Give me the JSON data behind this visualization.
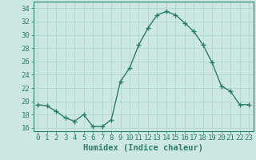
{
  "xlabel": "Humidex (Indice chaleur)",
  "x": [
    0,
    1,
    2,
    3,
    4,
    5,
    6,
    7,
    8,
    9,
    10,
    11,
    12,
    13,
    14,
    15,
    16,
    17,
    18,
    19,
    20,
    21,
    22,
    23
  ],
  "y": [
    19.5,
    19.3,
    18.5,
    17.5,
    17.0,
    18.0,
    16.2,
    16.2,
    17.2,
    23.0,
    25.0,
    28.5,
    31.0,
    33.0,
    33.5,
    33.0,
    31.8,
    30.5,
    28.5,
    25.8,
    22.3,
    21.5,
    19.5,
    19.5
  ],
  "line_color": "#2d7d6b",
  "marker": "+",
  "bg_color": "#cce8e0",
  "grid_color": "#aed4ca",
  "tick_color": "#2d7d6b",
  "label_color": "#2d7d6b",
  "ylim": [
    15.5,
    35
  ],
  "yticks": [
    16,
    18,
    20,
    22,
    24,
    26,
    28,
    30,
    32,
    34
  ],
  "xticks": [
    0,
    1,
    2,
    3,
    4,
    5,
    6,
    7,
    8,
    9,
    10,
    11,
    12,
    13,
    14,
    15,
    16,
    17,
    18,
    19,
    20,
    21,
    22,
    23
  ],
  "xlabel_fontsize": 7.5,
  "tick_fontsize": 6.5,
  "linewidth": 1.0,
  "markersize": 4.5,
  "markeredgewidth": 1.0
}
